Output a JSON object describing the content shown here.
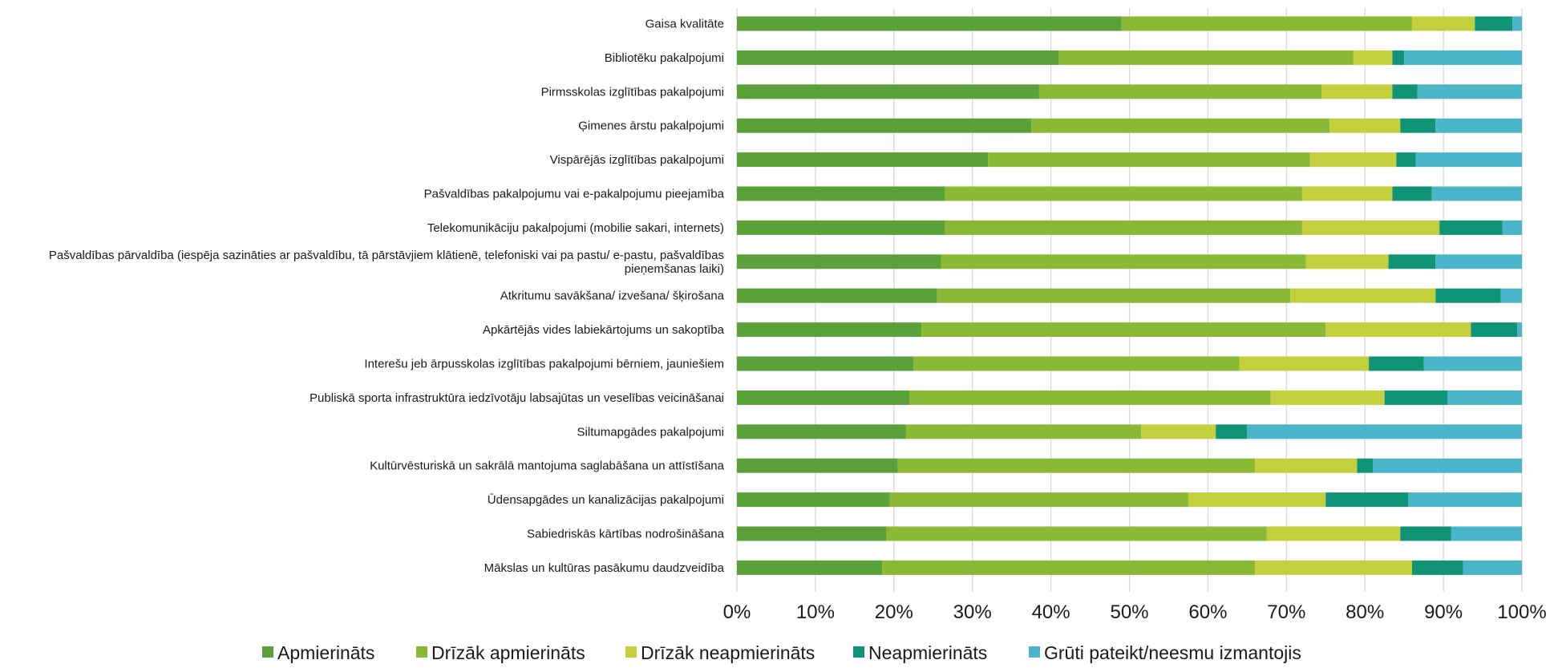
{
  "chart_data": {
    "type": "bar",
    "orientation": "horizontal",
    "stacked": true,
    "percent": true,
    "categories": [
      "Gaisa kvalitāte",
      "Bibliotēku pakalpojumi",
      "Pirmsskolas izglītības pakalpojumi",
      "Ģimenes ārstu pakalpojumi",
      "Vispārējās izglītības pakalpojumi",
      "Pašvaldības pakalpojumu vai e-pakalpojumu pieejamība",
      "Telekomunikāciju pakalpojumi (mobilie sakari, internets)",
      [
        "Pašvaldības pārvaldība (iespēja sazināties ar pašvaldību, tā pārstāvjiem klātienē, telefoniski vai pa pastu/ e-pastu, pašvaldības",
        "pieņemšanas laiki)"
      ],
      "Atkritumu savākšana/ izvešana/ šķirošana",
      "Apkārtējās vides labiekārtojums un sakoptība",
      "Interešu jeb ārpusskolas izglītības pakalpojumi bērniem, jauniešiem",
      "Publiskā sporta infrastruktūra iedzīvotāju labsajūtas un veselības veicināšanai",
      "Siltumapgādes pakalpojumi",
      "Kultūrvēsturiskā un sakrālā mantojuma saglabāšana un attīstīšana",
      "Ūdensapgādes un kanalizācijas pakalpojumi",
      "Sabiedriskās kārtības nodrošināšana",
      "Mākslas un kultūras pasākumu daudzveidība"
    ],
    "series": [
      {
        "name": "Apmierināts",
        "color": "#5aa13a",
        "values": [
          49,
          41,
          38.5,
          37.5,
          32,
          26.5,
          26.5,
          26,
          25.5,
          23.5,
          22.5,
          22,
          21.5,
          20.5,
          19.5,
          19,
          18.5
        ]
      },
      {
        "name": "Drīzāk apmierināts",
        "color": "#8ab935",
        "values": [
          37,
          37.5,
          36,
          38,
          41,
          45.5,
          45.5,
          46.5,
          45,
          51.5,
          41.5,
          46,
          30,
          45.5,
          38,
          48.5,
          47.5
        ]
      },
      {
        "name": "Drīzāk neapmierināts",
        "color": "#c4cf3d",
        "values": [
          8,
          5,
          9,
          9,
          11,
          11.5,
          17.5,
          10.5,
          18.5,
          18.5,
          16.5,
          14.5,
          9.5,
          13,
          17.5,
          17,
          20
        ]
      },
      {
        "name": "Neapmierināts",
        "color": "#0f9478",
        "values": [
          4.8,
          1.5,
          3.2,
          4.5,
          2.5,
          5,
          8,
          6,
          8.3,
          5.9,
          7,
          8,
          4,
          2,
          10.5,
          6.5,
          6.5
        ]
      },
      {
        "name": "Grūti pateikt/neesmu izmantojis",
        "color": "#4ab5c8",
        "values": [
          1.2,
          15,
          13.3,
          11,
          13.5,
          11.5,
          2.5,
          11,
          2.7,
          0.6,
          12.5,
          9.5,
          35,
          19,
          14.5,
          9,
          7.5
        ]
      }
    ],
    "x_ticks": [
      "0%",
      "10%",
      "20%",
      "30%",
      "40%",
      "50%",
      "60%",
      "70%",
      "80%",
      "90%",
      "100%"
    ],
    "xlim": [
      0,
      100
    ],
    "grid": "vertical",
    "legend": "bottom"
  }
}
